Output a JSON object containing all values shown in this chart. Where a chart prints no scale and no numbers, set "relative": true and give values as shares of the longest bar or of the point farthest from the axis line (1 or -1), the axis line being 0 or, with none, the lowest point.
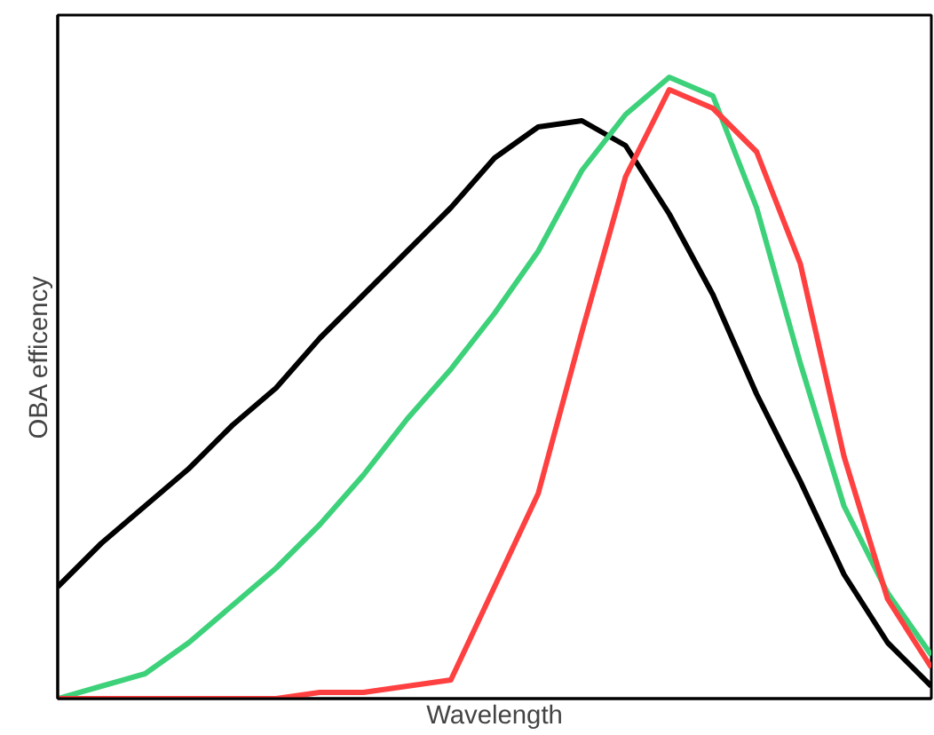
{
  "chart_data": {
    "type": "line",
    "xlabel": "Wavelength",
    "ylabel": "OBA efficency",
    "relative": true,
    "marker": "none",
    "line_style": "solid",
    "categories": [
      null,
      null,
      null,
      null,
      null,
      null,
      null,
      null,
      null,
      null,
      null,
      null,
      null,
      null,
      null,
      null,
      null,
      null,
      null,
      null,
      null
    ],
    "series": [
      {
        "color": "#000000",
        "values": [
          0.18,
          0.25,
          0.31,
          0.37,
          0.44,
          0.5,
          0.58,
          0.65,
          0.72,
          0.79,
          0.87,
          0.92,
          0.93,
          0.89,
          0.78,
          0.65,
          0.49,
          0.35,
          0.2,
          0.09,
          0.02
        ]
      },
      {
        "color": "#3dd17a",
        "values": [
          0,
          0.02,
          0.04,
          0.09,
          0.15,
          0.21,
          0.28,
          0.36,
          0.45,
          0.53,
          0.62,
          0.72,
          0.85,
          0.94,
          1.0,
          0.97,
          0.79,
          0.54,
          0.31,
          0.17,
          0.07
        ]
      },
      {
        "color": "#ff4040",
        "values": [
          0,
          0,
          0,
          0,
          0,
          0,
          0.01,
          0.01,
          0.02,
          0.03,
          0.18,
          0.33,
          0.59,
          0.84,
          0.98,
          0.95,
          0.88,
          0.7,
          0.39,
          0.16,
          0.05
        ]
      }
    ]
  }
}
